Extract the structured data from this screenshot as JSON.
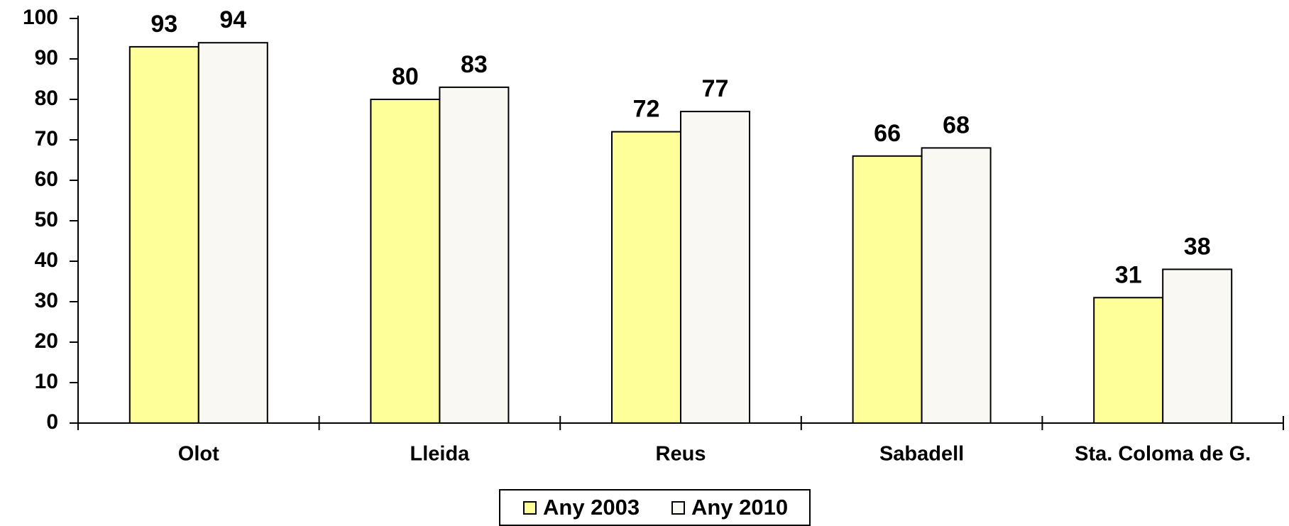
{
  "chart_data": {
    "type": "bar",
    "categories": [
      "Olot",
      "Lleida",
      "Reus",
      "Sabadell",
      "Sta. Coloma de G."
    ],
    "series": [
      {
        "name": "Any 2003",
        "color": "#ffff99",
        "values": [
          93,
          80,
          72,
          66,
          31
        ]
      },
      {
        "name": "Any 2010",
        "color": "#faf8f2",
        "values": [
          94,
          83,
          77,
          68,
          38
        ]
      }
    ],
    "ylim": [
      0,
      100
    ],
    "yticks": [
      0,
      10,
      20,
      30,
      40,
      50,
      60,
      70,
      80,
      90,
      100
    ],
    "grid": false,
    "legend": "bottom"
  }
}
